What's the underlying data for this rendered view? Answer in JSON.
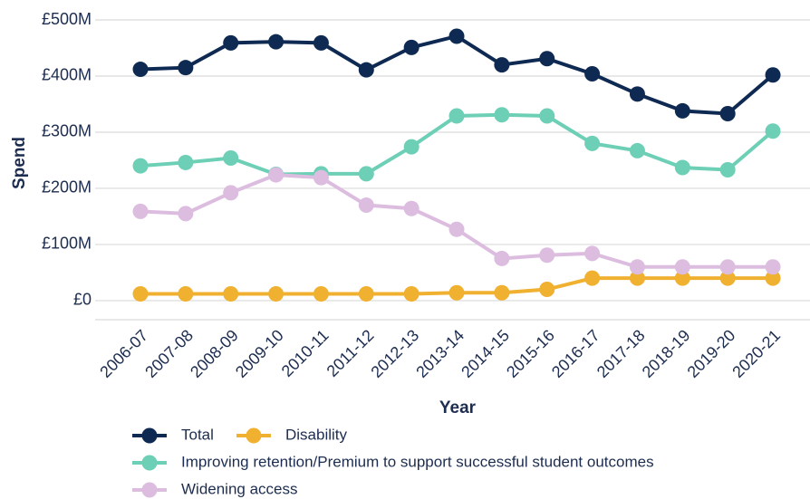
{
  "chart_data": {
    "type": "line",
    "x_label": "Year",
    "y_label": "Spend",
    "categories": [
      "2006-07",
      "2007-08",
      "2008-09",
      "2009-10",
      "2010-11",
      "2011-12",
      "2012-13",
      "2013-14",
      "2014-15",
      "2015-16",
      "2016-17",
      "2017-18",
      "2018-19",
      "2019-20",
      "2020-21"
    ],
    "series": [
      {
        "name": "Total",
        "color": "#0f2a52",
        "values": [
          412,
          415,
          459,
          461,
          459,
          411,
          451,
          471,
          420,
          431,
          404,
          368,
          338,
          333,
          402
        ]
      },
      {
        "name": "Disability",
        "color": "#f0b030",
        "values": [
          12,
          12,
          12,
          12,
          12,
          12,
          12,
          14,
          14,
          20,
          40,
          40,
          40,
          40,
          40
        ]
      },
      {
        "name": "Improving retention/Premium to support successful student outcomes",
        "color": "#6dcfb6",
        "values": [
          240,
          246,
          254,
          225,
          226,
          226,
          274,
          329,
          331,
          329,
          280,
          267,
          237,
          233,
          302
        ]
      },
      {
        "name": "Widening access",
        "color": "#dcbde0",
        "values": [
          159,
          155,
          192,
          224,
          219,
          170,
          164,
          127,
          75,
          81,
          84,
          60,
          60,
          60,
          60
        ]
      }
    ],
    "ylim": [
      -34,
      500
    ],
    "yticks": [
      {
        "value": 0,
        "label": "£0"
      },
      {
        "value": 100,
        "label": "£100M"
      },
      {
        "value": 200,
        "label": "£200M"
      },
      {
        "value": 300,
        "label": "£300M"
      },
      {
        "value": 400,
        "label": "£400M"
      },
      {
        "value": 500,
        "label": "£500M"
      }
    ],
    "grid": true
  }
}
